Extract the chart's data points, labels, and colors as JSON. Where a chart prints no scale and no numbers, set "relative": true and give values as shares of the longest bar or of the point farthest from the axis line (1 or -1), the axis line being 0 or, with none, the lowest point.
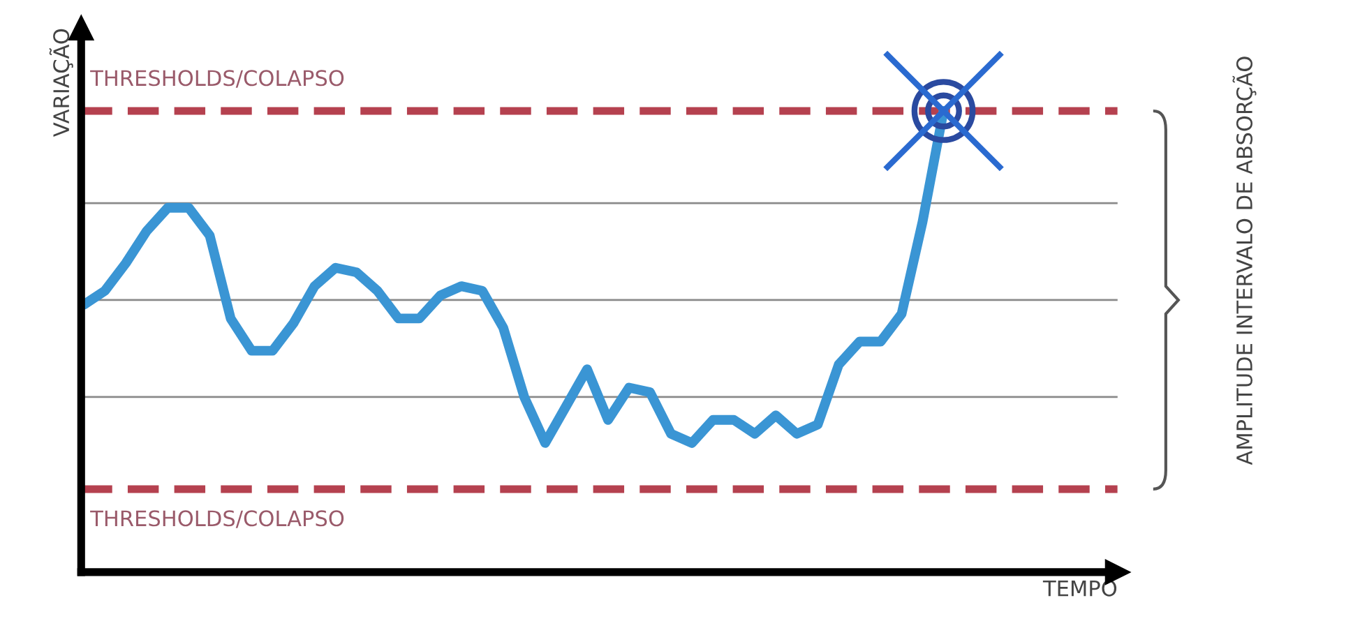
{
  "chart_data": {
    "type": "line",
    "relative": true,
    "xlabel": "TEMPO",
    "ylabel": "VARIAÇÃO",
    "categories": [
      null,
      null,
      null,
      null,
      null,
      null,
      null,
      null,
      null,
      null,
      null,
      null,
      null,
      null,
      null,
      null,
      null,
      null,
      null,
      null,
      null,
      null,
      null,
      null,
      null,
      null,
      null,
      null,
      null,
      null,
      null,
      null,
      null,
      null,
      null,
      null,
      null,
      null,
      null,
      null,
      null,
      null,
      null,
      null,
      null,
      null,
      null,
      null,
      null,
      null
    ],
    "series": [
      {
        "color": "#3a95d4",
        "values": [
          0.58,
          0.61,
          0.67,
          0.74,
          0.79,
          0.79,
          0.73,
          0.55,
          0.48,
          0.48,
          0.54,
          0.62,
          0.66,
          0.65,
          0.61,
          0.55,
          0.55,
          0.6,
          0.62,
          0.61,
          0.53,
          0.38,
          0.28,
          0.36,
          0.44,
          0.33,
          0.4,
          0.39,
          0.3,
          0.28,
          0.33,
          0.33,
          0.3,
          0.34,
          0.3,
          0.32,
          0.45,
          0.5,
          0.5,
          0.56,
          0.76,
          1.0,
          null,
          null,
          null,
          null,
          null,
          null,
          null,
          null
        ]
      }
    ],
    "ref_lines": [
      {
        "axis": "y",
        "value": 1.0,
        "label": "THRESHOLDS/COLAPSO",
        "color": "#b5414f",
        "line_style": "dashed"
      },
      {
        "axis": "y",
        "value": 0.18,
        "label": "THRESHOLDS/COLAPSO",
        "color": "#b5414f",
        "line_style": "dashed"
      },
      {
        "axis": "y",
        "value": 0.8,
        "color": "#8a8a8a",
        "line_style": "solid"
      },
      {
        "axis": "y",
        "value": 0.59,
        "color": "#8a8a8a",
        "line_style": "solid"
      },
      {
        "axis": "y",
        "value": 0.38,
        "color": "#8a8a8a",
        "line_style": "solid"
      }
    ],
    "annotations": [
      "AMPLITUDE INTERVALO DE ABSORÇÃO"
    ],
    "line_style": "solid",
    "marker": "none",
    "legend": false
  }
}
